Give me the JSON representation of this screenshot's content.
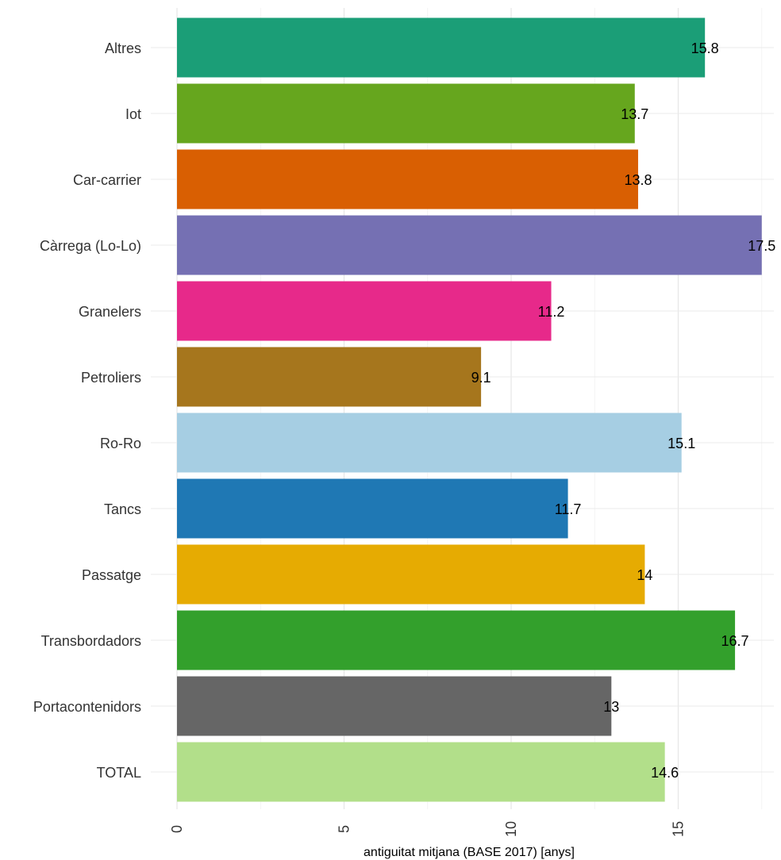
{
  "chart_data": {
    "type": "bar",
    "orientation": "horizontal",
    "categories": [
      "Altres",
      "Iot",
      "Car-carrier",
      "Càrrega (Lo-Lo)",
      "Granelers",
      "Petroliers",
      "Ro-Ro",
      "Tancs",
      "Passatge",
      "Transbordadors",
      "Portacontenidors",
      "TOTAL"
    ],
    "values": [
      15.8,
      13.7,
      13.8,
      17.5,
      11.2,
      9.1,
      15.1,
      11.7,
      14,
      16.7,
      13,
      14.6
    ],
    "data_labels": [
      "15.8",
      "13.7",
      "13.8",
      "17.5",
      "11.2",
      "9.1",
      "15.1",
      "11.7",
      "14",
      "16.7",
      "13",
      "14.6"
    ],
    "colors": [
      "#1b9e77",
      "#66a61e",
      "#d95f02",
      "#7570b3",
      "#e7298a",
      "#a6761d",
      "#a6cee3",
      "#1f78b4",
      "#e6ab02",
      "#33a02c",
      "#666666",
      "#b2df8a"
    ],
    "xlabel": "antiguitat mitjana (BASE 2017)  [anys]",
    "ylabel": "",
    "title": "",
    "xlim": [
      0,
      17.5
    ],
    "ticks": [
      0,
      5,
      10,
      15
    ],
    "tick_labels": [
      "0",
      "5",
      "10",
      "15"
    ],
    "grid": true,
    "legend": "none"
  }
}
